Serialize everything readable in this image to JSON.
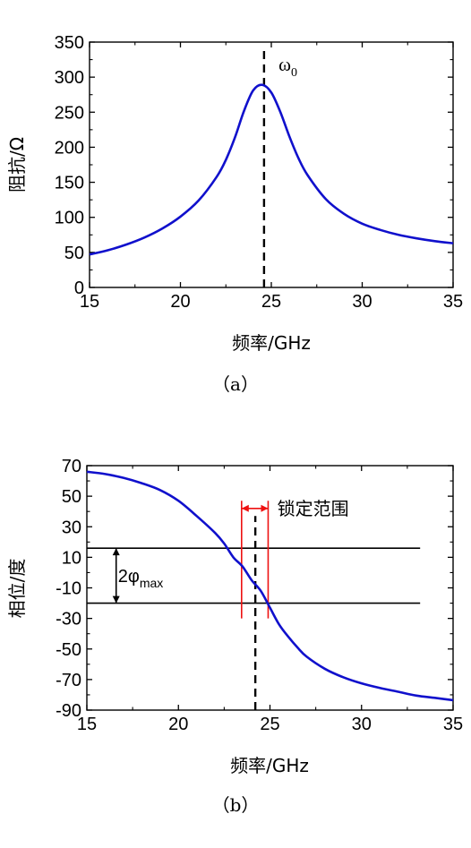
{
  "chart_data": [
    {
      "type": "line",
      "caption": "（a）",
      "xlabel": "频率/GHz",
      "ylabel": "阻抗/Ω",
      "xlim": [
        15,
        35
      ],
      "ylim": [
        0,
        350
      ],
      "xticks": [
        "15",
        "20",
        "25",
        "30",
        "35"
      ],
      "yticks": [
        "0",
        "50",
        "100",
        "150",
        "200",
        "250",
        "300",
        "350"
      ],
      "grid": false,
      "series": [
        {
          "color": "#1010cc",
          "x": [
            15,
            16,
            17,
            18,
            19,
            20,
            21,
            22,
            22.5,
            23,
            23.5,
            24,
            24.5,
            25,
            25.5,
            26,
            26.5,
            27,
            28,
            29,
            30,
            31,
            32,
            33,
            34,
            35
          ],
          "y": [
            47,
            53,
            61,
            71,
            84,
            101,
            124,
            158,
            182,
            214,
            252,
            281,
            289,
            278,
            250,
            215,
            184,
            160,
            126,
            105,
            91,
            82,
            75,
            70,
            66,
            63
          ]
        }
      ],
      "annotations": [
        {
          "type": "vline",
          "x": 24.6,
          "style": "dashed",
          "color": "#000000"
        },
        {
          "type": "text",
          "text": "ω",
          "subscript": "0",
          "x": 25.4,
          "y": 318
        }
      ]
    },
    {
      "type": "line",
      "caption": "（b）",
      "xlabel": "频率/GHz",
      "ylabel": "相位/度",
      "xlim": [
        15,
        35
      ],
      "ylim": [
        -90,
        70
      ],
      "xticks": [
        "15",
        "20",
        "25",
        "30",
        "35"
      ],
      "yticks": [
        "70",
        "50",
        "30",
        "10",
        "-10",
        "-30",
        "-50",
        "-70",
        "-90"
      ],
      "grid": false,
      "series": [
        {
          "color": "#1010cc",
          "x": [
            15,
            16,
            17,
            18,
            19,
            20,
            21,
            22,
            22.5,
            23,
            23.5,
            24,
            24.5,
            25,
            25.5,
            26,
            26.5,
            27,
            28,
            29,
            30,
            31,
            32,
            33,
            34,
            35
          ],
          "y": [
            66,
            64.5,
            62,
            58.5,
            54,
            47,
            37,
            26,
            19,
            10,
            4,
            -5,
            -12,
            -23,
            -34,
            -42,
            -49,
            -55,
            -63,
            -68.5,
            -72.5,
            -75.5,
            -78,
            -80.5,
            -82,
            -83.5
          ]
        }
      ],
      "annotations": [
        {
          "type": "hline",
          "y": 16,
          "x0": 15,
          "x1": 33.2,
          "color": "#000000"
        },
        {
          "type": "hline",
          "y": -20,
          "x0": 15,
          "x1": 33.2,
          "color": "#000000"
        },
        {
          "type": "vline",
          "x": 23.45,
          "y0": -30,
          "y1": 47,
          "color": "#ee1111"
        },
        {
          "type": "vline",
          "x": 24.9,
          "y0": -30,
          "y1": 47,
          "color": "#ee1111"
        },
        {
          "type": "vline",
          "x": 24.2,
          "y0": -90,
          "y1": 37,
          "style": "dashed",
          "color": "#000000"
        },
        {
          "type": "arrow-double",
          "x0": 23.45,
          "x1": 24.9,
          "y": 42,
          "color": "#ee1111"
        },
        {
          "type": "arrow-double",
          "x": 16.6,
          "y0": 16,
          "y1": -20,
          "color": "#000000"
        },
        {
          "type": "text",
          "text": "锁定范围",
          "x": 25.4,
          "y": 42
        },
        {
          "type": "text",
          "text": "2φ",
          "subscript": "max",
          "x": 16.7,
          "y": -2
        }
      ]
    }
  ]
}
